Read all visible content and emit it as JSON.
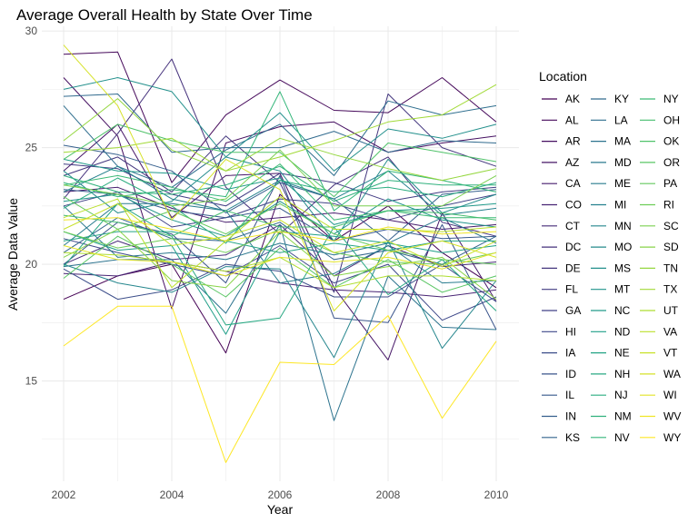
{
  "chart_data": {
    "type": "line",
    "title": "Average Overall Health by State Over Time",
    "xlabel": "Year",
    "ylabel": "Average Data Value",
    "x": [
      2002,
      2003,
      2004,
      2005,
      2006,
      2007,
      2008,
      2009,
      2010
    ],
    "xlim": [
      2002,
      2010
    ],
    "ylim": [
      10.7,
      30.2
    ],
    "x_ticks": [
      "2002",
      "2004",
      "2006",
      "2008",
      "2010"
    ],
    "y_ticks": [
      "15",
      "20",
      "25",
      "30"
    ],
    "grid": true,
    "legend_title": "Location",
    "legend_position": "right",
    "colormap": "viridis",
    "series": [
      {
        "name": "AK",
        "values": [
          18.5,
          19.5,
          20.0,
          16.2,
          23.0,
          21.0,
          22.5,
          20.5,
          19.0
        ]
      },
      {
        "name": "AL",
        "values": [
          29.0,
          29.1,
          23.5,
          26.4,
          27.9,
          26.6,
          26.5,
          28.0,
          26.1
        ]
      },
      {
        "name": "AR",
        "values": [
          28.0,
          25.5,
          18.1,
          25.2,
          25.9,
          26.1,
          24.8,
          25.2,
          25.5
        ]
      },
      {
        "name": "AZ",
        "values": [
          24.0,
          26.0,
          22.0,
          23.8,
          23.9,
          19.0,
          15.9,
          22.2,
          18.4
        ]
      },
      {
        "name": "CA",
        "values": [
          23.1,
          23.3,
          22.4,
          21.8,
          22.0,
          22.2,
          21.9,
          21.5,
          21.7
        ]
      },
      {
        "name": "CO",
        "values": [
          19.6,
          19.5,
          20.1,
          19.7,
          19.2,
          18.9,
          18.8,
          18.6,
          18.9
        ]
      },
      {
        "name": "CT",
        "values": [
          20.0,
          21.0,
          20.2,
          20.4,
          21.7,
          19.5,
          20.8,
          19.9,
          20.1
        ]
      },
      {
        "name": "DC",
        "values": [
          22.8,
          25.6,
          28.8,
          23.3,
          21.3,
          23.4,
          24.6,
          21.8,
          21.2
        ]
      },
      {
        "name": "DE",
        "values": [
          23.8,
          24.6,
          23.1,
          25.5,
          23.5,
          18.8,
          27.3,
          25.0,
          24.2
        ]
      },
      {
        "name": "FL",
        "values": [
          24.3,
          24.1,
          23.0,
          22.5,
          23.9,
          23.5,
          22.7,
          23.1,
          23.3
        ]
      },
      {
        "name": "GA",
        "values": [
          22.5,
          23.1,
          21.6,
          22.0,
          22.8,
          22.6,
          21.9,
          22.5,
          23.0
        ]
      },
      {
        "name": "HI",
        "values": [
          21.1,
          20.5,
          20.0,
          19.5,
          20.8,
          19.2,
          20.0,
          17.6,
          18.6
        ]
      },
      {
        "name": "IA",
        "values": [
          19.8,
          18.5,
          18.9,
          20.0,
          19.7,
          18.6,
          18.6,
          20.0,
          18.4
        ]
      },
      {
        "name": "ID",
        "values": [
          20.0,
          21.8,
          21.3,
          19.2,
          23.8,
          17.7,
          17.5,
          21.7,
          17.2
        ]
      },
      {
        "name": "IL",
        "values": [
          23.2,
          23.0,
          22.3,
          22.0,
          22.4,
          21.0,
          21.5,
          21.1,
          21.2
        ]
      },
      {
        "name": "IN",
        "values": [
          25.1,
          24.7,
          24.0,
          22.2,
          23.5,
          22.8,
          21.0,
          23.0,
          23.2
        ]
      },
      {
        "name": "KS",
        "values": [
          20.5,
          22.0,
          21.1,
          21.0,
          21.8,
          20.2,
          20.6,
          20.0,
          21.2
        ]
      },
      {
        "name": "KY",
        "values": [
          27.2,
          27.3,
          24.8,
          25.0,
          25.0,
          25.7,
          24.8,
          25.3,
          25.2
        ]
      },
      {
        "name": "LA",
        "values": [
          26.8,
          24.2,
          23.3,
          24.9,
          26.0,
          23.8,
          27.0,
          26.4,
          26.8
        ]
      },
      {
        "name": "MA",
        "values": [
          19.9,
          20.2,
          20.2,
          17.9,
          21.7,
          13.3,
          19.5,
          17.3,
          17.2
        ]
      },
      {
        "name": "MD",
        "values": [
          22.5,
          20.3,
          20.5,
          20.2,
          20.9,
          20.4,
          20.9,
          22.0,
          20.9
        ]
      },
      {
        "name": "ME",
        "values": [
          20.8,
          22.6,
          22.6,
          22.3,
          19.2,
          19.6,
          20.8,
          19.2,
          19.3
        ]
      },
      {
        "name": "MI",
        "values": [
          23.1,
          24.2,
          22.8,
          22.3,
          23.6,
          22.8,
          24.0,
          22.1,
          22.4
        ]
      },
      {
        "name": "MN",
        "values": [
          20.0,
          19.2,
          18.8,
          19.9,
          19.8,
          16.0,
          21.0,
          16.4,
          19.3
        ]
      },
      {
        "name": "MO",
        "values": [
          24.0,
          22.2,
          22.7,
          24.6,
          24.0,
          21.0,
          24.5,
          22.2,
          23.0
        ]
      },
      {
        "name": "MS",
        "values": [
          27.5,
          28.0,
          27.4,
          24.6,
          26.5,
          24.0,
          25.8,
          25.4,
          26.0
        ]
      },
      {
        "name": "MT",
        "values": [
          22.7,
          23.0,
          21.9,
          21.2,
          22.7,
          21.3,
          22.8,
          21.9,
          21.6
        ]
      },
      {
        "name": "NC",
        "values": [
          24.5,
          24.0,
          23.9,
          23.2,
          23.7,
          21.7,
          22.3,
          22.4,
          22.6
        ]
      },
      {
        "name": "ND",
        "values": [
          21.4,
          20.6,
          20.8,
          17.0,
          21.4,
          21.2,
          20.9,
          20.5,
          20.8
        ]
      },
      {
        "name": "NE",
        "values": [
          21.0,
          21.4,
          21.4,
          21.0,
          20.5,
          20.9,
          20.6,
          21.0,
          21.0
        ]
      },
      {
        "name": "NH",
        "values": [
          19.9,
          22.6,
          21.2,
          17.4,
          17.7,
          21.6,
          18.7,
          20.2,
          18.0
        ]
      },
      {
        "name": "NJ",
        "values": [
          22.4,
          23.7,
          22.5,
          20.9,
          23.6,
          23.1,
          23.3,
          22.9,
          23.5
        ]
      },
      {
        "name": "NM",
        "values": [
          23.8,
          23.1,
          23.0,
          23.4,
          24.2,
          22.7,
          23.6,
          23.4,
          23.4
        ]
      },
      {
        "name": "NV",
        "values": [
          23.5,
          22.9,
          23.2,
          22.9,
          27.4,
          22.3,
          24.0,
          23.6,
          23.1
        ]
      },
      {
        "name": "NY",
        "values": [
          23.4,
          23.8,
          23.3,
          22.7,
          24.3,
          21.9,
          22.3,
          22.0,
          22.0
        ]
      },
      {
        "name": "OH",
        "values": [
          22.1,
          21.8,
          21.2,
          22.3,
          21.6,
          21.6,
          22.3,
          22.2,
          21.9
        ]
      },
      {
        "name": "OK",
        "values": [
          24.5,
          26.0,
          25.3,
          24.8,
          24.8,
          22.9,
          25.2,
          24.8,
          24.4
        ]
      },
      {
        "name": "OR",
        "values": [
          19.4,
          21.2,
          20.0,
          18.6,
          20.7,
          19.0,
          20.2,
          18.8,
          19.5
        ]
      },
      {
        "name": "PA",
        "values": [
          22.9,
          21.5,
          22.3,
          21.3,
          22.6,
          21.3,
          20.6,
          20.2,
          20.0
        ]
      },
      {
        "name": "RI",
        "values": [
          21.4,
          20.7,
          21.1,
          20.5,
          21.5,
          20.5,
          20.1,
          20.0,
          20.5
        ]
      },
      {
        "name": "SC",
        "values": [
          23.4,
          23.0,
          22.5,
          22.8,
          24.9,
          22.5,
          22.5,
          22.5,
          23.8
        ]
      },
      {
        "name": "SD",
        "values": [
          20.3,
          21.5,
          19.3,
          19.0,
          21.4,
          19.5,
          19.9,
          20.3,
          18.5
        ]
      },
      {
        "name": "TN",
        "values": [
          25.3,
          27.1,
          24.9,
          24.0,
          25.4,
          24.7,
          24.1,
          23.6,
          24.1
        ]
      },
      {
        "name": "TX",
        "values": [
          24.8,
          25.0,
          25.4,
          24.0,
          24.6,
          25.3,
          26.1,
          26.4,
          27.7
        ]
      },
      {
        "name": "UT",
        "values": [
          20.5,
          20.4,
          20.1,
          19.7,
          20.3,
          19.0,
          19.5,
          19.5,
          19.3
        ]
      },
      {
        "name": "VA",
        "values": [
          22.0,
          22.8,
          19.0,
          21.0,
          22.9,
          21.5,
          21.5,
          21.4,
          21.6
        ]
      },
      {
        "name": "VT",
        "values": [
          21.5,
          22.6,
          20.8,
          21.2,
          21.9,
          20.5,
          21.0,
          19.9,
          21.0
        ]
      },
      {
        "name": "WA",
        "values": [
          29.4,
          26.8,
          21.9,
          24.5,
          23.2,
          18.0,
          20.5,
          21.0,
          20.3
        ]
      },
      {
        "name": "WI",
        "values": [
          20.8,
          20.2,
          20.1,
          19.5,
          20.3,
          20.1,
          20.3,
          19.8,
          20.5
        ]
      },
      {
        "name": "WV",
        "values": [
          21.9,
          22.0,
          21.5,
          21.0,
          21.4,
          21.0,
          21.6,
          21.3,
          21.4
        ]
      },
      {
        "name": "WY",
        "values": [
          16.5,
          18.2,
          18.2,
          11.5,
          15.8,
          15.7,
          17.8,
          13.4,
          16.7
        ]
      }
    ]
  }
}
